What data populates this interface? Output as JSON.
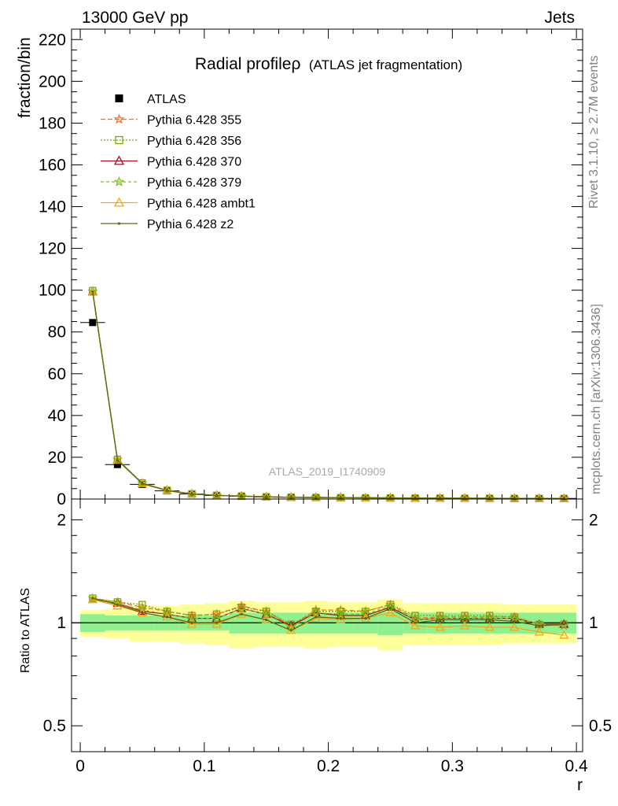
{
  "header": {
    "left": "13000 GeV pp",
    "right": "Jets"
  },
  "side_labels": {
    "rivet": "Rivet 3.1.10, ≥ 2.7M events",
    "mcplots": "mcplots.cern.ch [arXiv:1306.3436]"
  },
  "watermark": "ATLAS_2019_I1740909",
  "chart_data": [
    {
      "type": "line",
      "title": "Radial profileρ (ATLAS jet fragmentation)",
      "title_main": "Radial profileρ",
      "title_sub": "(ATLAS jet fragmentation)",
      "xlabel": "r",
      "ylabel": "fraction/bin",
      "xlim": [
        -0.007,
        0.405
      ],
      "ylim": [
        0,
        225
      ],
      "xticks": [
        0,
        0.1,
        0.2,
        0.3,
        0.4
      ],
      "xtick_labels": [
        "0",
        "0.1",
        "0.2",
        "0.3",
        "0.4"
      ],
      "yticks": [
        0,
        20,
        40,
        60,
        80,
        100,
        120,
        140,
        160,
        180,
        200,
        220
      ],
      "ytick_labels": [
        "0",
        "20",
        "40",
        "60",
        "80",
        "100",
        "120",
        "140",
        "160",
        "180",
        "200",
        "220"
      ],
      "legend_position": "top-left",
      "x": [
        0.01,
        0.03,
        0.05,
        0.07,
        0.09,
        0.11,
        0.13,
        0.15,
        0.17,
        0.19,
        0.21,
        0.23,
        0.25,
        0.27,
        0.29,
        0.31,
        0.33,
        0.35,
        0.37,
        0.39
      ],
      "series": [
        {
          "name": "ATLAS",
          "color": "#000000",
          "marker": "square",
          "values": [
            84.5,
            16.5,
            7.0,
            3.9,
            2.4,
            1.7,
            1.3,
            1.0,
            0.85,
            0.72,
            0.62,
            0.55,
            0.49,
            0.44,
            0.4,
            0.37,
            0.34,
            0.32,
            0.3,
            0.28
          ]
        },
        {
          "name": "Pythia 6.428 355",
          "color": "#ff6a1f",
          "marker": "star",
          "dash": "6,3",
          "values": [
            99.5,
            18.9,
            7.6,
            4.2,
            2.52,
            1.79,
            1.44,
            1.07,
            0.83,
            0.78,
            0.67,
            0.59,
            0.55,
            0.45,
            0.41,
            0.38,
            0.35,
            0.33,
            0.3,
            0.28
          ]
        },
        {
          "name": "Pythia 6.428 356",
          "color": "#7aa800",
          "marker": "open-square",
          "dash": "2,2",
          "values": [
            99.8,
            19.0,
            7.7,
            4.2,
            2.5,
            1.79,
            1.43,
            1.07,
            0.84,
            0.77,
            0.66,
            0.59,
            0.55,
            0.46,
            0.42,
            0.39,
            0.36,
            0.33,
            0.3,
            0.28
          ]
        },
        {
          "name": "Pythia 6.428 370",
          "color": "#a0122a",
          "marker": "open-triangle",
          "dash": "",
          "values": [
            99.3,
            18.8,
            7.5,
            4.1,
            2.45,
            1.75,
            1.42,
            1.06,
            0.83,
            0.77,
            0.65,
            0.58,
            0.55,
            0.45,
            0.41,
            0.38,
            0.35,
            0.33,
            0.3,
            0.28
          ]
        },
        {
          "name": "Pythia 6.428 379",
          "color": "#74c018",
          "marker": "star",
          "dash": "4,3",
          "values": [
            99.4,
            18.9,
            7.5,
            4.1,
            2.45,
            1.73,
            1.42,
            1.05,
            0.82,
            0.76,
            0.65,
            0.58,
            0.55,
            0.45,
            0.41,
            0.38,
            0.35,
            0.33,
            0.3,
            0.28
          ]
        },
        {
          "name": "Pythia 6.428 ambt1",
          "color": "#f5a814",
          "marker": "open-triangle",
          "dash": "",
          "values": [
            99.0,
            18.6,
            7.4,
            4.0,
            2.38,
            1.69,
            1.39,
            1.02,
            0.8,
            0.74,
            0.63,
            0.57,
            0.53,
            0.43,
            0.39,
            0.36,
            0.33,
            0.31,
            0.28,
            0.26
          ]
        },
        {
          "name": "Pythia 6.428 z2",
          "color": "#5a6a10",
          "marker": "dot",
          "dash": "",
          "values": [
            99.3,
            18.7,
            7.4,
            4.0,
            2.38,
            1.7,
            1.38,
            1.02,
            0.8,
            0.75,
            0.64,
            0.57,
            0.54,
            0.44,
            0.41,
            0.38,
            0.35,
            0.32,
            0.3,
            0.28
          ]
        }
      ]
    },
    {
      "type": "line",
      "ylabel": "Ratio to ATLAS",
      "xlabel": "r",
      "ylim": [
        0.42,
        2.3
      ],
      "log_y": true,
      "yticks": [
        0.5,
        1,
        2
      ],
      "ytick_labels": [
        "0.5",
        "1",
        "2"
      ],
      "x": [
        0.01,
        0.03,
        0.05,
        0.07,
        0.09,
        0.11,
        0.13,
        0.15,
        0.17,
        0.19,
        0.21,
        0.23,
        0.25,
        0.27,
        0.29,
        0.31,
        0.33,
        0.35,
        0.37,
        0.39
      ],
      "band_inner": {
        "color": "#90f090",
        "low": [
          0.94,
          0.95,
          0.95,
          0.95,
          0.95,
          0.95,
          0.93,
          0.93,
          0.93,
          0.93,
          0.93,
          0.93,
          0.92,
          0.93,
          0.93,
          0.93,
          0.93,
          0.93,
          0.93,
          0.93
        ],
        "high": [
          1.06,
          1.05,
          1.05,
          1.05,
          1.05,
          1.05,
          1.07,
          1.07,
          1.07,
          1.07,
          1.07,
          1.07,
          1.08,
          1.07,
          1.07,
          1.07,
          1.07,
          1.07,
          1.07,
          1.07
        ]
      },
      "band_outer": {
        "color": "#ffff99",
        "low": [
          0.91,
          0.9,
          0.88,
          0.88,
          0.87,
          0.86,
          0.84,
          0.85,
          0.85,
          0.84,
          0.85,
          0.85,
          0.83,
          0.86,
          0.86,
          0.86,
          0.86,
          0.87,
          0.87,
          0.87
        ],
        "high": [
          1.09,
          1.1,
          1.12,
          1.12,
          1.13,
          1.14,
          1.16,
          1.15,
          1.15,
          1.16,
          1.15,
          1.15,
          1.17,
          1.14,
          1.14,
          1.14,
          1.14,
          1.13,
          1.13,
          1.13
        ]
      },
      "series": [
        {
          "name": "Pythia 6.428 355",
          "color": "#ff6a1f",
          "marker": "star",
          "dash": "6,3",
          "values": [
            1.18,
            1.15,
            1.11,
            1.08,
            1.05,
            1.06,
            1.12,
            1.08,
            0.98,
            1.09,
            1.09,
            1.08,
            1.13,
            1.03,
            1.04,
            1.04,
            1.04,
            1.04,
            0.99,
            0.98
          ]
        },
        {
          "name": "Pythia 6.428 356",
          "color": "#7aa800",
          "marker": "open-square",
          "dash": "2,2",
          "values": [
            1.18,
            1.15,
            1.13,
            1.08,
            1.05,
            1.06,
            1.11,
            1.08,
            0.99,
            1.08,
            1.08,
            1.08,
            1.13,
            1.05,
            1.05,
            1.05,
            1.05,
            1.04,
            0.99,
            0.99
          ]
        },
        {
          "name": "Pythia 6.428 370",
          "color": "#a0122a",
          "marker": "open-triangle",
          "dash": "",
          "values": [
            1.17,
            1.14,
            1.08,
            1.06,
            1.03,
            1.03,
            1.1,
            1.06,
            0.98,
            1.07,
            1.05,
            1.05,
            1.11,
            1.02,
            1.03,
            1.03,
            1.03,
            1.03,
            0.99,
            0.99
          ]
        },
        {
          "name": "Pythia 6.428 379",
          "color": "#74c018",
          "marker": "star",
          "dash": "4,3",
          "values": [
            1.18,
            1.14,
            1.09,
            1.06,
            1.03,
            1.03,
            1.1,
            1.06,
            0.97,
            1.07,
            1.06,
            1.06,
            1.12,
            1.02,
            1.03,
            1.03,
            1.03,
            1.03,
            0.99,
            0.98
          ]
        },
        {
          "name": "Pythia 6.428 ambt1",
          "color": "#f5a814",
          "marker": "open-triangle",
          "dash": "",
          "values": [
            1.17,
            1.12,
            1.07,
            1.04,
            0.99,
            0.99,
            1.06,
            1.02,
            0.95,
            1.03,
            1.02,
            1.03,
            1.07,
            0.98,
            0.97,
            0.98,
            0.97,
            0.97,
            0.94,
            0.92
          ]
        },
        {
          "name": "Pythia 6.428 z2",
          "color": "#5a6a10",
          "marker": "dot",
          "dash": "",
          "values": [
            1.18,
            1.13,
            1.07,
            1.04,
            1.0,
            1.0,
            1.06,
            1.02,
            0.95,
            1.04,
            1.03,
            1.03,
            1.1,
            1.0,
            1.02,
            1.02,
            1.02,
            1.01,
            0.98,
            0.99
          ]
        }
      ]
    }
  ]
}
